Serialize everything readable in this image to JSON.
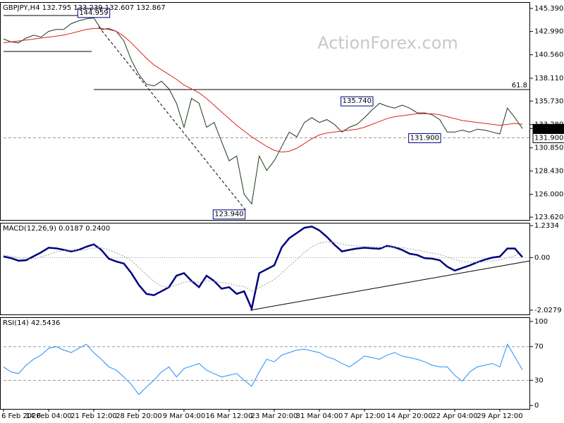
{
  "chart_data": [
    {
      "type": "line",
      "title": "GBPJPY,H4  132.795 133.239 132.607 132.867",
      "watermark": "ActionForex.com",
      "ylim": [
        123.33,
        146.05
      ],
      "yticks": [
        {
          "value": 145.39,
          "label": "145.390"
        },
        {
          "value": 142.99,
          "label": "142.990"
        },
        {
          "value": 140.56,
          "label": "140.560"
        },
        {
          "value": 138.11,
          "label": "138.110"
        },
        {
          "value": 135.73,
          "label": "135.730"
        },
        {
          "value": 133.28,
          "label": "133.280"
        },
        {
          "value": 130.85,
          "label": "130.850"
        },
        {
          "value": 128.43,
          "label": "128.430"
        },
        {
          "value": 126,
          "label": "126.000"
        },
        {
          "value": 123.62,
          "label": "123.620"
        }
      ],
      "series": [
        {
          "color": "#1c3a1c",
          "line_style": "solid",
          "values": [
            142.2,
            141.9,
            141.8,
            142.3,
            142.6,
            142.4,
            143.0,
            143.2,
            143.2,
            143.8,
            144.1,
            144.3,
            144.4,
            143.2,
            143.3,
            143.0,
            142.0,
            140.0,
            138.5,
            137.5,
            137.3,
            137.8,
            137.0,
            135.5,
            133.0,
            136.0,
            135.5,
            133.0,
            133.5,
            131.5,
            129.5,
            130.0,
            126.0,
            125.0,
            130.0,
            128.5,
            129.5,
            131.0,
            132.5,
            132.0,
            133.5,
            134.0,
            133.5,
            133.8,
            133.3,
            132.5,
            133.0,
            133.3,
            134.0,
            134.8,
            135.5,
            135.2,
            135.0,
            135.3,
            135.0,
            134.5,
            134.5,
            134.3,
            133.8,
            132.5,
            132.5,
            132.7,
            132.5,
            132.8,
            132.7,
            132.5,
            132.3,
            135.0,
            134.0,
            132.867
          ]
        },
        {
          "color": "#e02020",
          "line_style": "solid",
          "values": [
            141.8,
            141.9,
            142.0,
            142.1,
            142.2,
            142.3,
            142.4,
            142.5,
            142.6,
            142.8,
            143.0,
            143.2,
            143.3,
            143.3,
            143.2,
            143.0,
            142.5,
            141.8,
            141.0,
            140.2,
            139.5,
            139.0,
            138.5,
            138.0,
            137.4,
            137.0,
            136.6,
            136.0,
            135.3,
            134.6,
            133.9,
            133.2,
            132.6,
            132.0,
            131.5,
            131.0,
            130.6,
            130.4,
            130.5,
            130.8,
            131.3,
            131.8,
            132.2,
            132.4,
            132.5,
            132.6,
            132.7,
            132.8,
            133.0,
            133.3,
            133.6,
            133.9,
            134.1,
            134.2,
            134.3,
            134.4,
            134.4,
            134.4,
            134.3,
            134.1,
            133.9,
            133.7,
            133.6,
            133.5,
            133.4,
            133.3,
            133.2,
            133.3,
            133.4,
            133.3
          ]
        }
      ],
      "hlines": [
        {
          "value": 136.93,
          "label": "61.8",
          "line_style": "solid",
          "from_index": 12
        },
        {
          "value": 131.9,
          "label": "131.900",
          "line_style": "dashed",
          "from_index": 0
        }
      ],
      "annotations": [
        {
          "value": 144.959,
          "label": "144.959",
          "index": 12
        },
        {
          "value": 135.74,
          "label": "135.740",
          "index": 47
        },
        {
          "value": 123.94,
          "label": "123.940",
          "index": 30
        },
        {
          "value": 131.9,
          "label": "131.900",
          "index": 56
        }
      ],
      "current_price": {
        "value": 132.867,
        "label": "132.867"
      }
    },
    {
      "type": "line",
      "title": "MACD(12,26,9) 0.0187 0.2400",
      "ylim": [
        -2.194,
        1.344
      ],
      "yticks": [
        1.2334,
        {
          "value": 0,
          "label": "0.00"
        },
        -2.0279
      ],
      "series": [
        {
          "color": "#000080",
          "line_style": "bold",
          "values": [
            0.04,
            -0.02,
            -0.12,
            -0.1,
            0.05,
            0.2,
            0.38,
            0.36,
            0.3,
            0.24,
            0.3,
            0.42,
            0.51,
            0.3,
            -0.04,
            -0.15,
            -0.23,
            -0.6,
            -1.06,
            -1.4,
            -1.45,
            -1.3,
            -1.14,
            -0.7,
            -0.6,
            -0.9,
            -1.14,
            -0.7,
            -0.9,
            -1.2,
            -1.14,
            -1.4,
            -1.3,
            -1.97,
            -0.6,
            -0.45,
            -0.3,
            0.4,
            0.75,
            0.95,
            1.15,
            1.2,
            1.05,
            0.8,
            0.5,
            0.24,
            0.3,
            0.35,
            0.38,
            0.36,
            0.34,
            0.45,
            0.4,
            0.3,
            0.15,
            0.1,
            -0.02,
            -0.04,
            -0.1,
            -0.35,
            -0.5,
            -0.4,
            -0.3,
            -0.18,
            -0.08,
            0.0,
            0.04,
            0.35,
            0.35,
            0.0187
          ]
        },
        {
          "color": "#a0a0a0",
          "line_style": "dotted",
          "values": [
            0.1,
            0.05,
            0.0,
            -0.05,
            -0.04,
            0.02,
            0.12,
            0.22,
            0.28,
            0.28,
            0.28,
            0.31,
            0.37,
            0.38,
            0.3,
            0.18,
            0.05,
            -0.12,
            -0.38,
            -0.66,
            -0.92,
            -1.1,
            -1.15,
            -1.06,
            -0.95,
            -0.92,
            -0.95,
            -0.9,
            -0.9,
            -0.96,
            -1.0,
            -1.08,
            -1.12,
            -1.3,
            -1.16,
            -1.0,
            -0.85,
            -0.6,
            -0.33,
            -0.07,
            0.2,
            0.42,
            0.56,
            0.61,
            0.59,
            0.52,
            0.47,
            0.45,
            0.43,
            0.42,
            0.4,
            0.41,
            0.41,
            0.39,
            0.34,
            0.29,
            0.23,
            0.17,
            0.12,
            0.03,
            -0.08,
            -0.15,
            -0.18,
            -0.18,
            -0.16,
            -0.13,
            -0.09,
            0.0,
            0.07,
            0.24
          ]
        }
      ],
      "hlines": [
        {
          "value": 0,
          "line_style": "dotted",
          "from_index": 0
        }
      ]
    },
    {
      "type": "line",
      "title": "RSI(14) 42.5436",
      "ylim": [
        -4,
        105
      ],
      "yticks": [
        100,
        70,
        30,
        0
      ],
      "series": [
        {
          "color": "#1e90ff",
          "line_style": "solid",
          "values": [
            46,
            40,
            38,
            48,
            55,
            60,
            68,
            70,
            66,
            63,
            68,
            73,
            63,
            55,
            46,
            42,
            34,
            25,
            13,
            22,
            30,
            40,
            46,
            34,
            44,
            47,
            50,
            42,
            38,
            34,
            36,
            38,
            30,
            23,
            40,
            55,
            52,
            60,
            63,
            66,
            67,
            65,
            63,
            58,
            55,
            50,
            46,
            52,
            59,
            57,
            55,
            60,
            63,
            59,
            57,
            55,
            52,
            48,
            46,
            46,
            36,
            29,
            40,
            46,
            48,
            50,
            46,
            73,
            58,
            42.5436
          ]
        }
      ],
      "hlines": [
        {
          "value": 70,
          "line_style": "dashed",
          "from_index": 0
        },
        {
          "value": 30,
          "line_style": "dashed",
          "from_index": 0
        }
      ],
      "categories": [
        "6 Feb 2020",
        null,
        null,
        null,
        null,
        null,
        "14 Feb 04:00",
        null,
        null,
        null,
        null,
        null,
        "21 Feb 12:00",
        null,
        null,
        null,
        null,
        null,
        "28 Feb 20:00",
        null,
        null,
        null,
        null,
        null,
        "9 Mar 04:00",
        null,
        null,
        null,
        null,
        null,
        "16 Mar 12:00",
        null,
        null,
        null,
        null,
        null,
        "23 Mar 20:00",
        null,
        null,
        null,
        null,
        null,
        "31 Mar 04:00",
        null,
        null,
        null,
        null,
        null,
        "7 Apr 12:00",
        null,
        null,
        null,
        null,
        null,
        "14 Apr 20:00",
        null,
        null,
        null,
        null,
        null,
        "22 Apr 04:00",
        null,
        null,
        null,
        null,
        null,
        "29 Apr 12:00",
        null,
        null,
        null
      ]
    }
  ]
}
